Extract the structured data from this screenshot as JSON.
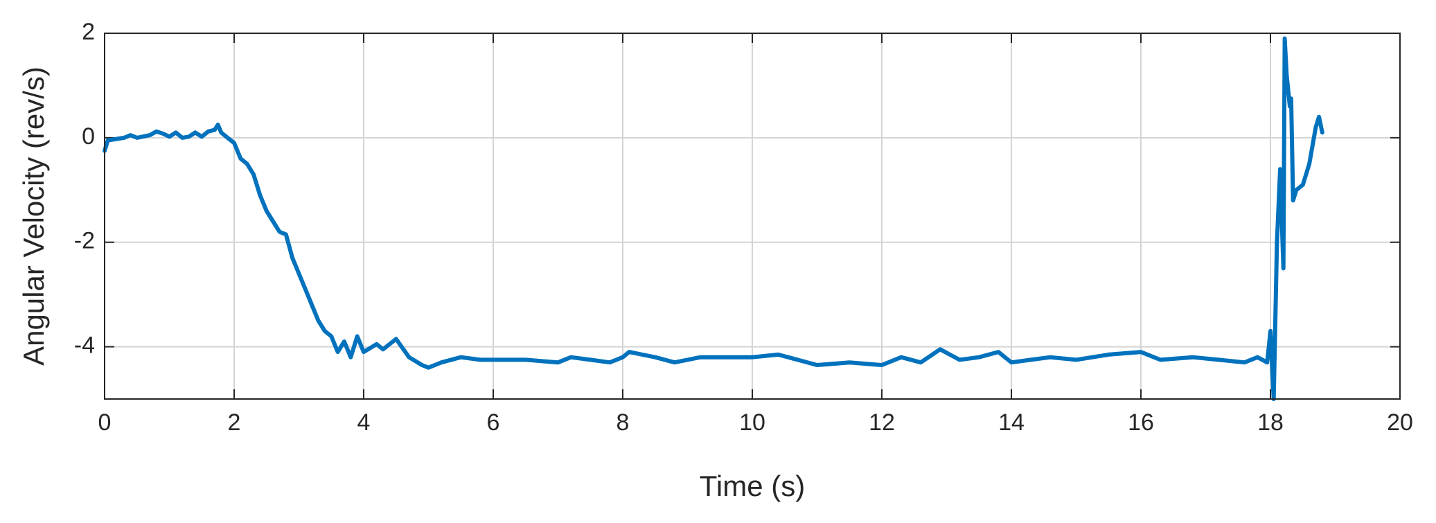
{
  "chart_data": {
    "type": "line",
    "x_label": "Time (s)",
    "y_label": "Angular Velocity (rev/s)",
    "color": "#0072bd",
    "grid": true,
    "xlim": [
      0,
      20
    ],
    "ylim": [
      -5,
      2
    ],
    "xticks": [
      0,
      2,
      4,
      6,
      8,
      10,
      12,
      14,
      16,
      18,
      20
    ],
    "yticks": [
      -4,
      -2,
      0,
      2
    ],
    "x": [
      0,
      0.05,
      0.3,
      0.4,
      0.5,
      0.7,
      0.8,
      0.9,
      1.0,
      1.1,
      1.2,
      1.3,
      1.4,
      1.5,
      1.6,
      1.7,
      1.75,
      1.8,
      1.9,
      2.0,
      2.1,
      2.2,
      2.3,
      2.4,
      2.5,
      2.6,
      2.7,
      2.8,
      2.9,
      3.0,
      3.1,
      3.2,
      3.3,
      3.4,
      3.5,
      3.6,
      3.7,
      3.8,
      3.9,
      4.0,
      4.2,
      4.3,
      4.5,
      4.7,
      4.9,
      5.0,
      5.2,
      5.5,
      5.8,
      6.0,
      6.5,
      7.0,
      7.2,
      7.5,
      7.8,
      8.0,
      8.1,
      8.5,
      8.8,
      9.2,
      9.6,
      10.0,
      10.4,
      10.7,
      11.0,
      11.5,
      12.0,
      12.3,
      12.6,
      12.9,
      13.2,
      13.5,
      13.8,
      14.0,
      14.3,
      14.6,
      15.0,
      15.5,
      16.0,
      16.3,
      16.8,
      17.2,
      17.6,
      17.8,
      17.95,
      18.0,
      18.05,
      18.1,
      18.15,
      18.2,
      18.22,
      18.25,
      18.3,
      18.32,
      18.35,
      18.4,
      18.5,
      18.6,
      18.7,
      18.75,
      18.8
    ],
    "values": [
      -0.25,
      -0.05,
      0,
      0.05,
      0,
      0.05,
      0.12,
      0.08,
      0.02,
      0.1,
      0,
      0.02,
      0.1,
      0.02,
      0.12,
      0.15,
      0.25,
      0.1,
      0,
      -0.1,
      -0.4,
      -0.5,
      -0.7,
      -1.1,
      -1.4,
      -1.6,
      -1.8,
      -1.85,
      -2.3,
      -2.6,
      -2.9,
      -3.2,
      -3.5,
      -3.7,
      -3.8,
      -4.1,
      -3.9,
      -4.2,
      -3.8,
      -4.1,
      -3.95,
      -4.05,
      -3.85,
      -4.2,
      -4.35,
      -4.4,
      -4.3,
      -4.2,
      -4.25,
      -4.25,
      -4.25,
      -4.3,
      -4.2,
      -4.25,
      -4.3,
      -4.2,
      -4.1,
      -4.2,
      -4.3,
      -4.2,
      -4.2,
      -4.2,
      -4.15,
      -4.25,
      -4.35,
      -4.3,
      -4.35,
      -4.2,
      -4.3,
      -4.05,
      -4.25,
      -4.2,
      -4.1,
      -4.3,
      -4.25,
      -4.2,
      -4.25,
      -4.15,
      -4.1,
      -4.25,
      -4.2,
      -4.25,
      -4.3,
      -4.2,
      -4.3,
      -3.7,
      -5.0,
      -2.0,
      -0.6,
      -2.5,
      1.9,
      1.2,
      0.6,
      0.75,
      -1.2,
      -1.0,
      -0.9,
      -0.5,
      0.2,
      0.4,
      0.1
    ]
  }
}
